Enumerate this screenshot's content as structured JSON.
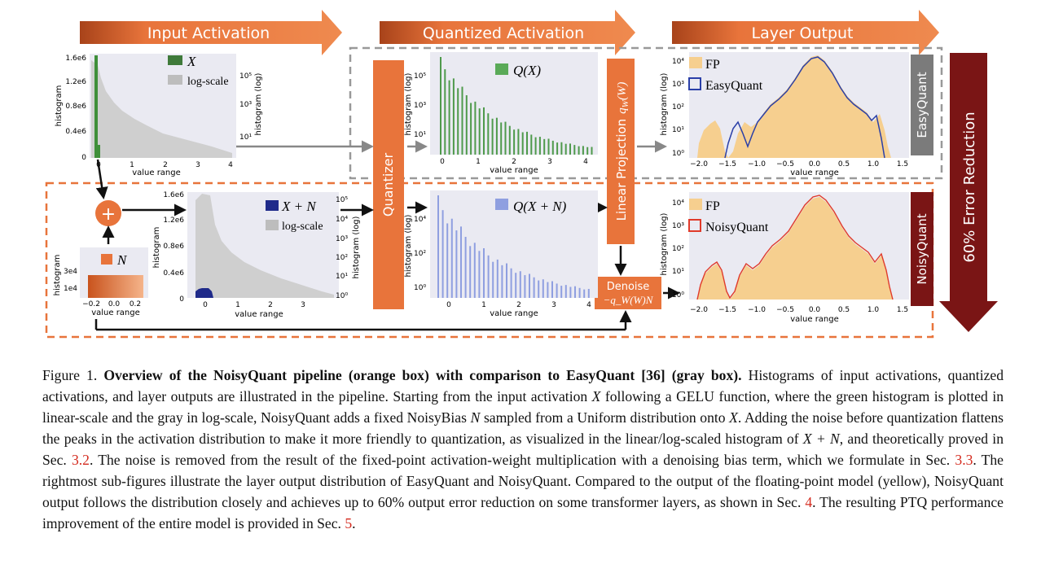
{
  "figure": {
    "stage_labels": {
      "input": "Input Activation",
      "quantized": "Quantized Activation",
      "output": "Layer Output"
    },
    "error_reduction": "60% Error Reduction",
    "side_labels": {
      "easyquant": "EasyQuant",
      "noisyquant": "NoisyQuant"
    },
    "blocks": {
      "quantizer": "Quantizer",
      "linear_projection": "Linear Projection",
      "qw": "q",
      "qw_sub": "W",
      "qw_arg": "(W)",
      "denoise": "Denoise",
      "denoise_term": "−q_W(W)N",
      "plus": "+"
    },
    "plots": {
      "input_x": {
        "legend": [
          "X",
          "log-scale"
        ],
        "y_ticks": [
          "1.6e6",
          "1.2e6",
          "0.8e6",
          "0.4e6",
          "0"
        ],
        "y2_ticks": [
          "10⁵",
          "10³",
          "10¹"
        ],
        "x_ticks": [
          "0",
          "1",
          "2",
          "3",
          "4"
        ],
        "xlabel": "value range",
        "ylabel": "histogram",
        "y2label": "histogram (log)"
      },
      "input_xn": {
        "legend": [
          "X + N",
          "log-scale"
        ],
        "y_ticks": [
          "1.6e6",
          "1.2e6",
          "0.8e6",
          "0.4e6",
          "0"
        ],
        "y2_ticks": [
          "10⁵",
          "10⁴",
          "10³",
          "10²",
          "10¹",
          "10⁰"
        ],
        "x_ticks": [
          "0",
          "1",
          "2",
          "3"
        ],
        "xlabel": "value range",
        "ylabel": "histogram",
        "y2label": "histogram (log)"
      },
      "noise_n": {
        "legend": "N",
        "y_ticks": [
          "3e4",
          "1e4"
        ],
        "x_ticks": [
          "−0.2",
          "0.0",
          "0.2"
        ],
        "xlabel": "value range",
        "ylabel": "histogram"
      },
      "quant_x": {
        "legend": "Q(X)",
        "y_ticks": [
          "10⁵",
          "10³",
          "10¹"
        ],
        "x_ticks": [
          "0",
          "1",
          "2",
          "3",
          "4"
        ],
        "xlabel": "value range",
        "ylabel": "histogram (log)"
      },
      "quant_xn": {
        "legend": "Q(X + N)",
        "y_ticks": [
          "10⁴",
          "10²",
          "10⁰"
        ],
        "x_ticks": [
          "0",
          "1",
          "2",
          "3",
          "4"
        ],
        "xlabel": "value range",
        "ylabel": "histogram (log)"
      },
      "out_easy": {
        "legend": [
          "FP",
          "EasyQuant"
        ],
        "y_ticks": [
          "10⁴",
          "10³",
          "10²",
          "10¹",
          "10⁰"
        ],
        "x_ticks": [
          "−2.0",
          "−1.5",
          "−1.0",
          "−0.5",
          "0.0",
          "0.5",
          "1.0",
          "1.5"
        ],
        "xlabel": "value range",
        "ylabel": "histogram (log)"
      },
      "out_noisy": {
        "legend": [
          "FP",
          "NoisyQuant"
        ],
        "y_ticks": [
          "10⁴",
          "10³",
          "10²",
          "10¹",
          "10⁰"
        ],
        "x_ticks": [
          "−2.0",
          "−1.5",
          "−1.0",
          "−0.5",
          "0.0",
          "0.5",
          "1.0",
          "1.5"
        ],
        "xlabel": "value range",
        "ylabel": "histogram (log)"
      }
    },
    "colors": {
      "orange": "#e8743b",
      "dark_red": "#7a1515",
      "green": "#3f8f3a",
      "gray_hist": "#c9c9c9",
      "navy": "#1f2a8a",
      "blue_light": "#8f9fe0",
      "fp_yellow": "#f6cf8f",
      "easy_blue": "#2a3fa8",
      "noisy_red": "#e03a2a"
    }
  },
  "caption": {
    "label": "Figure 1.",
    "bold": "Overview of the NoisyQuant pipeline (orange box) with comparison to EasyQuant [36] (gray box).",
    "s1": "Histograms of input activations, quantized activations, and layer outputs are illustrated in the pipeline. Starting from the input activation",
    "x": "X",
    "s2": "following a GELU function, where the green histogram is plotted in linear-scale and the gray in log-scale, NoisyQuant adds a fixed NoisyBias",
    "n": "N",
    "s3": "sampled from a Uniform distribution onto",
    "s4": ". Adding the noise before quantization flattens the peaks in the activation distribution to make it more friendly to quantization, as visualized in the linear/log-scaled histogram of",
    "xpn": "X + N",
    "s5": ", and theoretically proved in Sec.",
    "ref1": "3.2",
    "s6": ". The noise is removed from the result of the fixed-point activation-weight multiplication with a denoising bias term, which we formulate in Sec.",
    "ref2": "3.3",
    "s7": ". The rightmost sub-figures illustrate the layer output distribution of EasyQuant and NoisyQuant. Compared to the output of the floating-point model (yellow), NoisyQuant output follows the distribution closely and achieves up to 60% output error reduction on some transformer layers, as shown in Sec.",
    "ref3": "4",
    "s8": ". The resulting PTQ performance improvement of the entire model is provided in Sec.",
    "ref4": "5",
    "s9": "."
  }
}
